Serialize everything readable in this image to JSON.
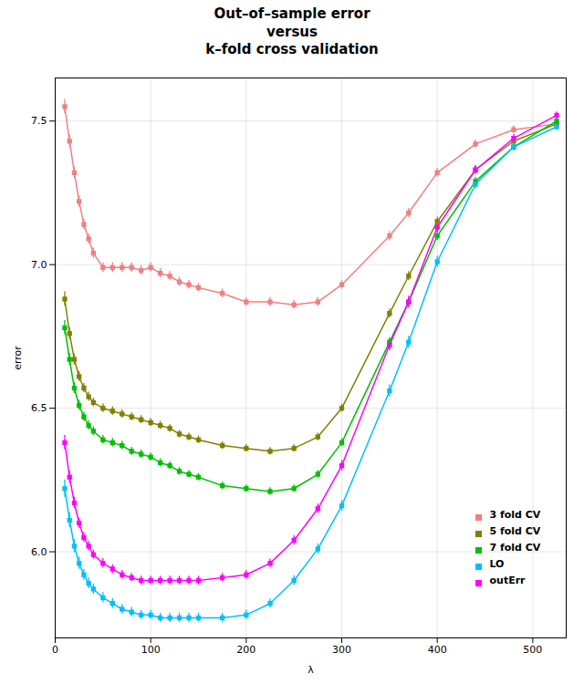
{
  "chart_data": {
    "type": "line",
    "title": "Out–of–sample error\nversus\nk–fold cross validation",
    "xlabel": "λ",
    "ylabel": "error",
    "xlim": [
      0,
      535
    ],
    "ylim": [
      5.7,
      7.65
    ],
    "xticks": [
      0,
      100,
      200,
      300,
      400,
      500
    ],
    "yticks": [
      {
        "value": 6.0,
        "label": "6.0"
      },
      6.5,
      {
        "value": 7.0,
        "label": "7.0"
      },
      7.5
    ],
    "grid": true,
    "legend": "lower right",
    "marker": "square",
    "x": [
      10,
      15,
      20,
      25,
      30,
      35,
      40,
      50,
      60,
      70,
      80,
      90,
      100,
      110,
      120,
      130,
      140,
      150,
      175,
      200,
      225,
      250,
      275,
      300,
      350,
      370,
      400,
      440,
      480,
      525
    ],
    "series": [
      {
        "name": "3 fold CV",
        "color": "#F08080",
        "values": [
          7.55,
          7.43,
          7.32,
          7.22,
          7.14,
          7.09,
          7.04,
          6.99,
          6.99,
          6.99,
          6.99,
          6.98,
          6.99,
          6.97,
          6.96,
          6.94,
          6.93,
          6.92,
          6.9,
          6.87,
          6.87,
          6.86,
          6.87,
          6.93,
          7.1,
          7.18,
          7.32,
          7.42,
          7.47,
          7.49
        ],
        "yerr": [
          0.025,
          0.022,
          0.02,
          0.019,
          0.018,
          0.018,
          0.018,
          0.017,
          0.017,
          0.017,
          0.017,
          0.016,
          0.016,
          0.016,
          0.016,
          0.016,
          0.015,
          0.015,
          0.015,
          0.015,
          0.015,
          0.015,
          0.015,
          0.015,
          0.016,
          0.016,
          0.015,
          0.014,
          0.013,
          0.012
        ]
      },
      {
        "name": "5 fold CV",
        "color": "#808000",
        "values": [
          6.88,
          6.76,
          6.67,
          6.61,
          6.57,
          6.54,
          6.52,
          6.5,
          6.49,
          6.48,
          6.47,
          6.46,
          6.45,
          6.44,
          6.43,
          6.41,
          6.4,
          6.39,
          6.37,
          6.36,
          6.35,
          6.36,
          6.4,
          6.5,
          6.83,
          6.96,
          7.15,
          7.33,
          7.43,
          7.49
        ],
        "yerr": [
          0.025,
          0.021,
          0.019,
          0.017,
          0.016,
          0.016,
          0.015,
          0.015,
          0.015,
          0.015,
          0.014,
          0.014,
          0.014,
          0.014,
          0.014,
          0.013,
          0.013,
          0.013,
          0.013,
          0.013,
          0.013,
          0.013,
          0.013,
          0.014,
          0.016,
          0.016,
          0.016,
          0.014,
          0.013,
          0.012
        ]
      },
      {
        "name": "7 fold CV",
        "color": "#00C000",
        "values": [
          6.78,
          6.67,
          6.57,
          6.51,
          6.47,
          6.44,
          6.42,
          6.39,
          6.38,
          6.37,
          6.35,
          6.34,
          6.33,
          6.31,
          6.3,
          6.28,
          6.27,
          6.26,
          6.23,
          6.22,
          6.21,
          6.22,
          6.27,
          6.38,
          6.73,
          6.87,
          7.1,
          7.29,
          7.41,
          7.5
        ],
        "yerr": [
          0.025,
          0.021,
          0.019,
          0.017,
          0.016,
          0.016,
          0.015,
          0.015,
          0.015,
          0.015,
          0.014,
          0.014,
          0.014,
          0.014,
          0.014,
          0.013,
          0.013,
          0.013,
          0.013,
          0.013,
          0.013,
          0.013,
          0.013,
          0.014,
          0.016,
          0.016,
          0.016,
          0.014,
          0.013,
          0.012
        ]
      },
      {
        "name": "LO",
        "color": "#00BFFF",
        "values": [
          6.22,
          6.11,
          6.02,
          5.96,
          5.92,
          5.89,
          5.87,
          5.84,
          5.82,
          5.8,
          5.79,
          5.78,
          5.78,
          5.77,
          5.77,
          5.77,
          5.77,
          5.77,
          5.77,
          5.78,
          5.82,
          5.9,
          6.01,
          6.16,
          6.56,
          6.73,
          7.01,
          7.28,
          7.41,
          7.48
        ],
        "yerr": [
          0.03,
          0.026,
          0.023,
          0.021,
          0.019,
          0.019,
          0.018,
          0.018,
          0.017,
          0.017,
          0.016,
          0.016,
          0.016,
          0.016,
          0.016,
          0.016,
          0.016,
          0.016,
          0.016,
          0.016,
          0.016,
          0.017,
          0.018,
          0.019,
          0.021,
          0.021,
          0.019,
          0.016,
          0.014,
          0.012
        ]
      },
      {
        "name": "outErr",
        "color": "#FF00FF",
        "values": [
          6.38,
          6.26,
          6.17,
          6.1,
          6.05,
          6.02,
          5.99,
          5.96,
          5.94,
          5.92,
          5.91,
          5.9,
          5.9,
          5.9,
          5.9,
          5.9,
          5.9,
          5.9,
          5.91,
          5.92,
          5.96,
          6.04,
          6.15,
          6.3,
          6.72,
          6.87,
          7.13,
          7.33,
          7.44,
          7.52
        ],
        "yerr": [
          0.025,
          0.022,
          0.02,
          0.018,
          0.017,
          0.017,
          0.016,
          0.016,
          0.015,
          0.015,
          0.015,
          0.015,
          0.015,
          0.015,
          0.015,
          0.015,
          0.015,
          0.015,
          0.015,
          0.015,
          0.015,
          0.016,
          0.017,
          0.018,
          0.02,
          0.02,
          0.018,
          0.015,
          0.013,
          0.012
        ]
      }
    ]
  }
}
